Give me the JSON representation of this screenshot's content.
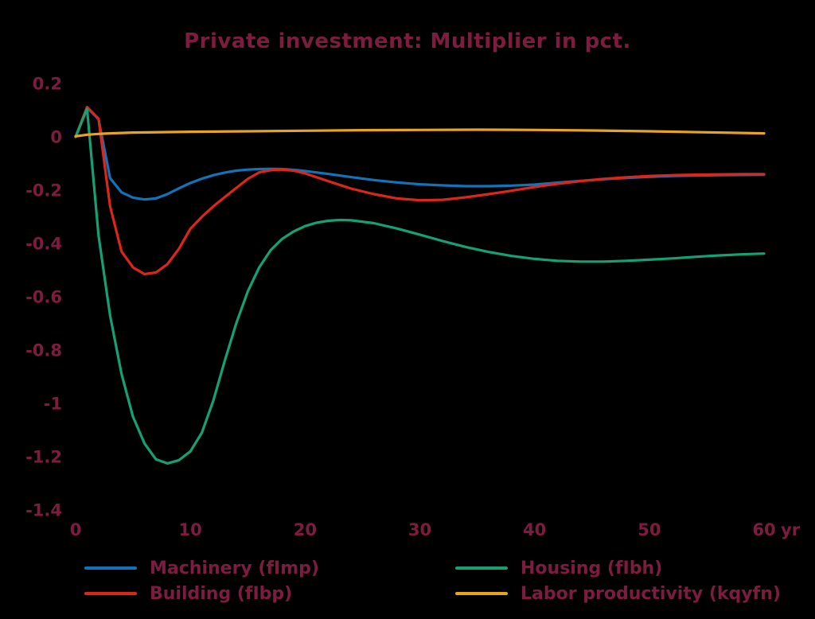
{
  "title": "Private investment: Multiplier in pct.",
  "colors": {
    "background": "#000000",
    "text": "#7D1C40"
  },
  "chart_data": {
    "type": "line",
    "title": "Private investment: Multiplier in pct.",
    "x_unit": "yr",
    "xlim": [
      0,
      60
    ],
    "ylim": [
      -1.4,
      0.2
    ],
    "grid": false,
    "legend_position": "bottom",
    "x_ticks": [
      [
        0,
        "0"
      ],
      [
        10,
        "10"
      ],
      [
        20,
        "20"
      ],
      [
        30,
        "30"
      ],
      [
        40,
        "40"
      ],
      [
        50,
        "50"
      ],
      [
        60,
        "60"
      ]
    ],
    "y_ticks": [
      [
        0.2,
        "0.2"
      ],
      [
        0,
        "0"
      ],
      [
        -0.2,
        "-0.2"
      ],
      [
        -0.4,
        "-0.4"
      ],
      [
        -0.6,
        "-0.6"
      ],
      [
        -0.8,
        "-0.8"
      ],
      [
        -1,
        "-1"
      ],
      [
        -1.2,
        "-1.2"
      ],
      [
        -1.4,
        "-1.4"
      ]
    ],
    "series": [
      {
        "key": "machinery",
        "name": "Machinery (fImp)",
        "color": "#1173B8",
        "points": [
          [
            0,
            0
          ],
          [
            1,
            0.11
          ],
          [
            2,
            0.066
          ],
          [
            3,
            -0.155
          ],
          [
            4,
            -0.208
          ],
          [
            5,
            -0.228
          ],
          [
            6,
            -0.235
          ],
          [
            7,
            -0.231
          ],
          [
            8,
            -0.215
          ],
          [
            9,
            -0.193
          ],
          [
            10,
            -0.173
          ],
          [
            11,
            -0.157
          ],
          [
            12,
            -0.144
          ],
          [
            13,
            -0.134
          ],
          [
            14,
            -0.127
          ],
          [
            15,
            -0.123
          ],
          [
            16,
            -0.121
          ],
          [
            17,
            -0.12
          ],
          [
            18,
            -0.121
          ],
          [
            19,
            -0.124
          ],
          [
            20,
            -0.128
          ],
          [
            22,
            -0.139
          ],
          [
            24,
            -0.151
          ],
          [
            26,
            -0.162
          ],
          [
            28,
            -0.171
          ],
          [
            30,
            -0.178
          ],
          [
            32,
            -0.182
          ],
          [
            34,
            -0.185
          ],
          [
            36,
            -0.185
          ],
          [
            38,
            -0.183
          ],
          [
            40,
            -0.179
          ],
          [
            42,
            -0.172
          ],
          [
            44,
            -0.165
          ],
          [
            46,
            -0.159
          ],
          [
            48,
            -0.154
          ],
          [
            50,
            -0.15
          ],
          [
            52,
            -0.147
          ],
          [
            54,
            -0.145
          ],
          [
            56,
            -0.144
          ],
          [
            58,
            -0.143
          ],
          [
            60,
            -0.142
          ]
        ]
      },
      {
        "key": "building",
        "name": "Building (fIbp)",
        "color": "#DC261C",
        "points": [
          [
            0,
            0
          ],
          [
            1,
            0.112
          ],
          [
            2,
            0.068
          ],
          [
            3,
            -0.26
          ],
          [
            4,
            -0.43
          ],
          [
            5,
            -0.49
          ],
          [
            6,
            -0.515
          ],
          [
            7,
            -0.509
          ],
          [
            8,
            -0.478
          ],
          [
            9,
            -0.42
          ],
          [
            10,
            -0.345
          ],
          [
            11,
            -0.3
          ],
          [
            12,
            -0.261
          ],
          [
            13,
            -0.226
          ],
          [
            14,
            -0.192
          ],
          [
            15,
            -0.158
          ],
          [
            16,
            -0.133
          ],
          [
            17,
            -0.125
          ],
          [
            18,
            -0.123
          ],
          [
            19,
            -0.127
          ],
          [
            20,
            -0.137
          ],
          [
            22,
            -0.166
          ],
          [
            24,
            -0.194
          ],
          [
            26,
            -0.215
          ],
          [
            28,
            -0.231
          ],
          [
            30,
            -0.238
          ],
          [
            32,
            -0.236
          ],
          [
            34,
            -0.227
          ],
          [
            36,
            -0.215
          ],
          [
            38,
            -0.202
          ],
          [
            40,
            -0.188
          ],
          [
            42,
            -0.176
          ],
          [
            44,
            -0.166
          ],
          [
            46,
            -0.158
          ],
          [
            48,
            -0.152
          ],
          [
            50,
            -0.147
          ],
          [
            52,
            -0.144
          ],
          [
            54,
            -0.142
          ],
          [
            56,
            -0.141
          ],
          [
            58,
            -0.14
          ],
          [
            60,
            -0.14
          ]
        ]
      },
      {
        "key": "housing",
        "name": "Housing (fIbh)",
        "color": "#13A175",
        "points": [
          [
            0,
            0
          ],
          [
            1,
            0.105
          ],
          [
            2,
            -0.37
          ],
          [
            3,
            -0.67
          ],
          [
            4,
            -0.89
          ],
          [
            5,
            -1.05
          ],
          [
            6,
            -1.15
          ],
          [
            7,
            -1.21
          ],
          [
            8,
            -1.225
          ],
          [
            9,
            -1.213
          ],
          [
            10,
            -1.18
          ],
          [
            11,
            -1.11
          ],
          [
            12,
            -0.99
          ],
          [
            13,
            -0.84
          ],
          [
            14,
            -0.7
          ],
          [
            15,
            -0.58
          ],
          [
            16,
            -0.49
          ],
          [
            17,
            -0.425
          ],
          [
            18,
            -0.383
          ],
          [
            19,
            -0.355
          ],
          [
            20,
            -0.335
          ],
          [
            21,
            -0.322
          ],
          [
            22,
            -0.315
          ],
          [
            23,
            -0.312
          ],
          [
            24,
            -0.313
          ],
          [
            26,
            -0.324
          ],
          [
            28,
            -0.344
          ],
          [
            30,
            -0.367
          ],
          [
            32,
            -0.391
          ],
          [
            34,
            -0.413
          ],
          [
            36,
            -0.432
          ],
          [
            38,
            -0.447
          ],
          [
            40,
            -0.458
          ],
          [
            42,
            -0.465
          ],
          [
            44,
            -0.468
          ],
          [
            46,
            -0.468
          ],
          [
            48,
            -0.465
          ],
          [
            50,
            -0.461
          ],
          [
            52,
            -0.456
          ],
          [
            54,
            -0.45
          ],
          [
            56,
            -0.445
          ],
          [
            58,
            -0.441
          ],
          [
            60,
            -0.438
          ]
        ]
      },
      {
        "key": "labor-productivity",
        "name": "Labor productivity (kqyfn)",
        "color": "#E8A41E",
        "points": [
          [
            0,
            0.002
          ],
          [
            1,
            0.008
          ],
          [
            2,
            0.011
          ],
          [
            3,
            0.013
          ],
          [
            5,
            0.016
          ],
          [
            10,
            0.019
          ],
          [
            15,
            0.021
          ],
          [
            20,
            0.023
          ],
          [
            25,
            0.025
          ],
          [
            30,
            0.026
          ],
          [
            35,
            0.027
          ],
          [
            40,
            0.026
          ],
          [
            45,
            0.024
          ],
          [
            50,
            0.021
          ],
          [
            55,
            0.017
          ],
          [
            60,
            0.013
          ]
        ]
      }
    ]
  }
}
